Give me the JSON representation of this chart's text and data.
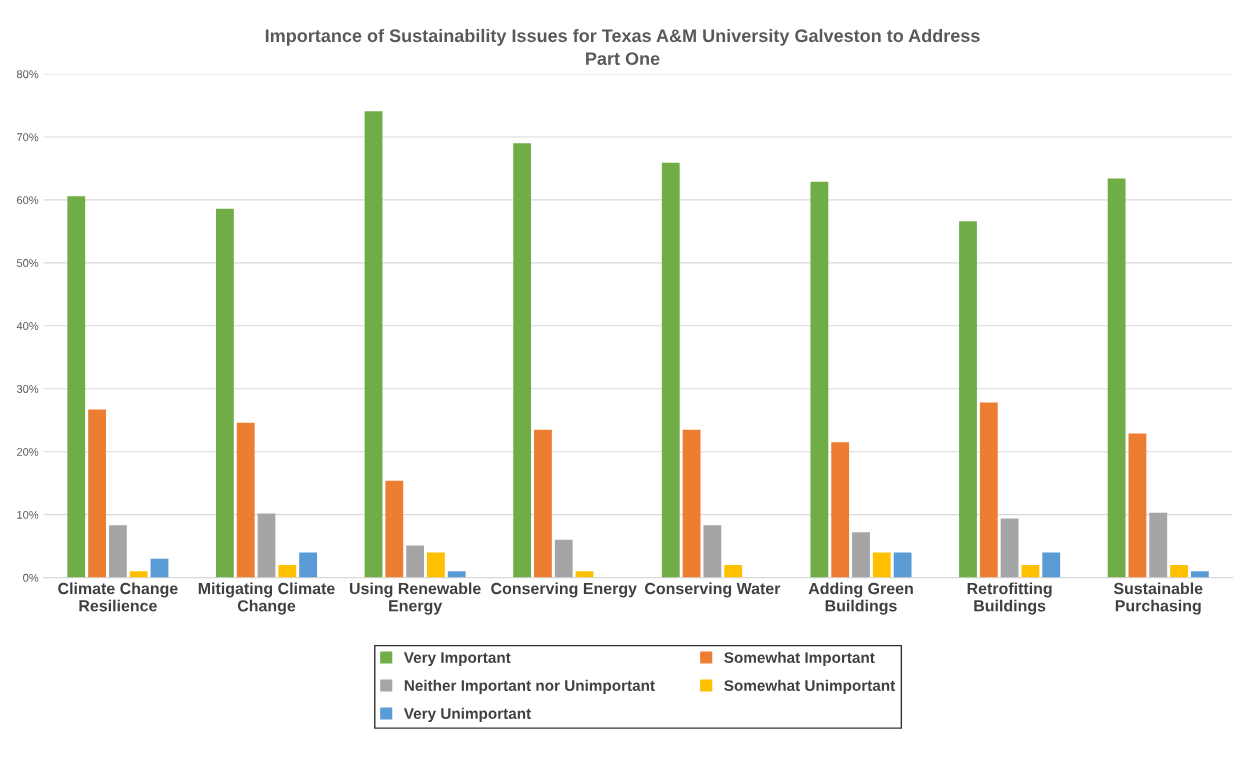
{
  "chart_data": {
    "type": "bar",
    "title": "Importance of Sustainability Issues for Texas A&M University Galveston to Address",
    "subtitle": "Part One",
    "categories": [
      "Climate Change\nResilience",
      "Mitigating Climate\nChange",
      "Using Renewable\nEnergy",
      "Conserving Energy",
      "Conserving Water",
      "Adding Green\nBuildings",
      "Retrofitting\nBuildings",
      "Sustainable\nPurchasing"
    ],
    "series": [
      {
        "name": "Very Important",
        "color": "#70ad47",
        "values": [
          60.6,
          58.6,
          74.1,
          69,
          65.9,
          62.9,
          56.6,
          63.4
        ]
      },
      {
        "name": "Somewhat Important",
        "color": "#ed7d31",
        "values": [
          26.7,
          24.6,
          15.4,
          23.5,
          23.5,
          21.5,
          27.8,
          22.9
        ]
      },
      {
        "name": "Neither Important nor Unimportant",
        "color": "#a5a5a5",
        "values": [
          8.3,
          10.2,
          5.1,
          6,
          8.3,
          7.2,
          9.4,
          10.3
        ]
      },
      {
        "name": "Somewhat Unimportant",
        "color": "#ffc000",
        "values": [
          1,
          2,
          4,
          1,
          2,
          4,
          2,
          2
        ]
      },
      {
        "name": "Very Unimportant",
        "color": "#5b9bd5",
        "values": [
          3,
          4,
          1,
          0,
          0,
          4,
          4,
          1
        ]
      }
    ],
    "ylim": [
      0,
      80
    ],
    "yticks": [
      {
        "value": 0,
        "label": "0%"
      },
      {
        "value": 10,
        "label": "10%"
      },
      {
        "value": 20,
        "label": "20%"
      },
      {
        "value": 30,
        "label": "30%"
      },
      {
        "value": 40,
        "label": "40%"
      },
      {
        "value": 50,
        "label": "50%"
      },
      {
        "value": 60,
        "label": "60%"
      },
      {
        "value": 70,
        "label": "70%"
      },
      {
        "value": 80,
        "label": "80%"
      }
    ],
    "grid": "y",
    "legend": "bottom"
  }
}
